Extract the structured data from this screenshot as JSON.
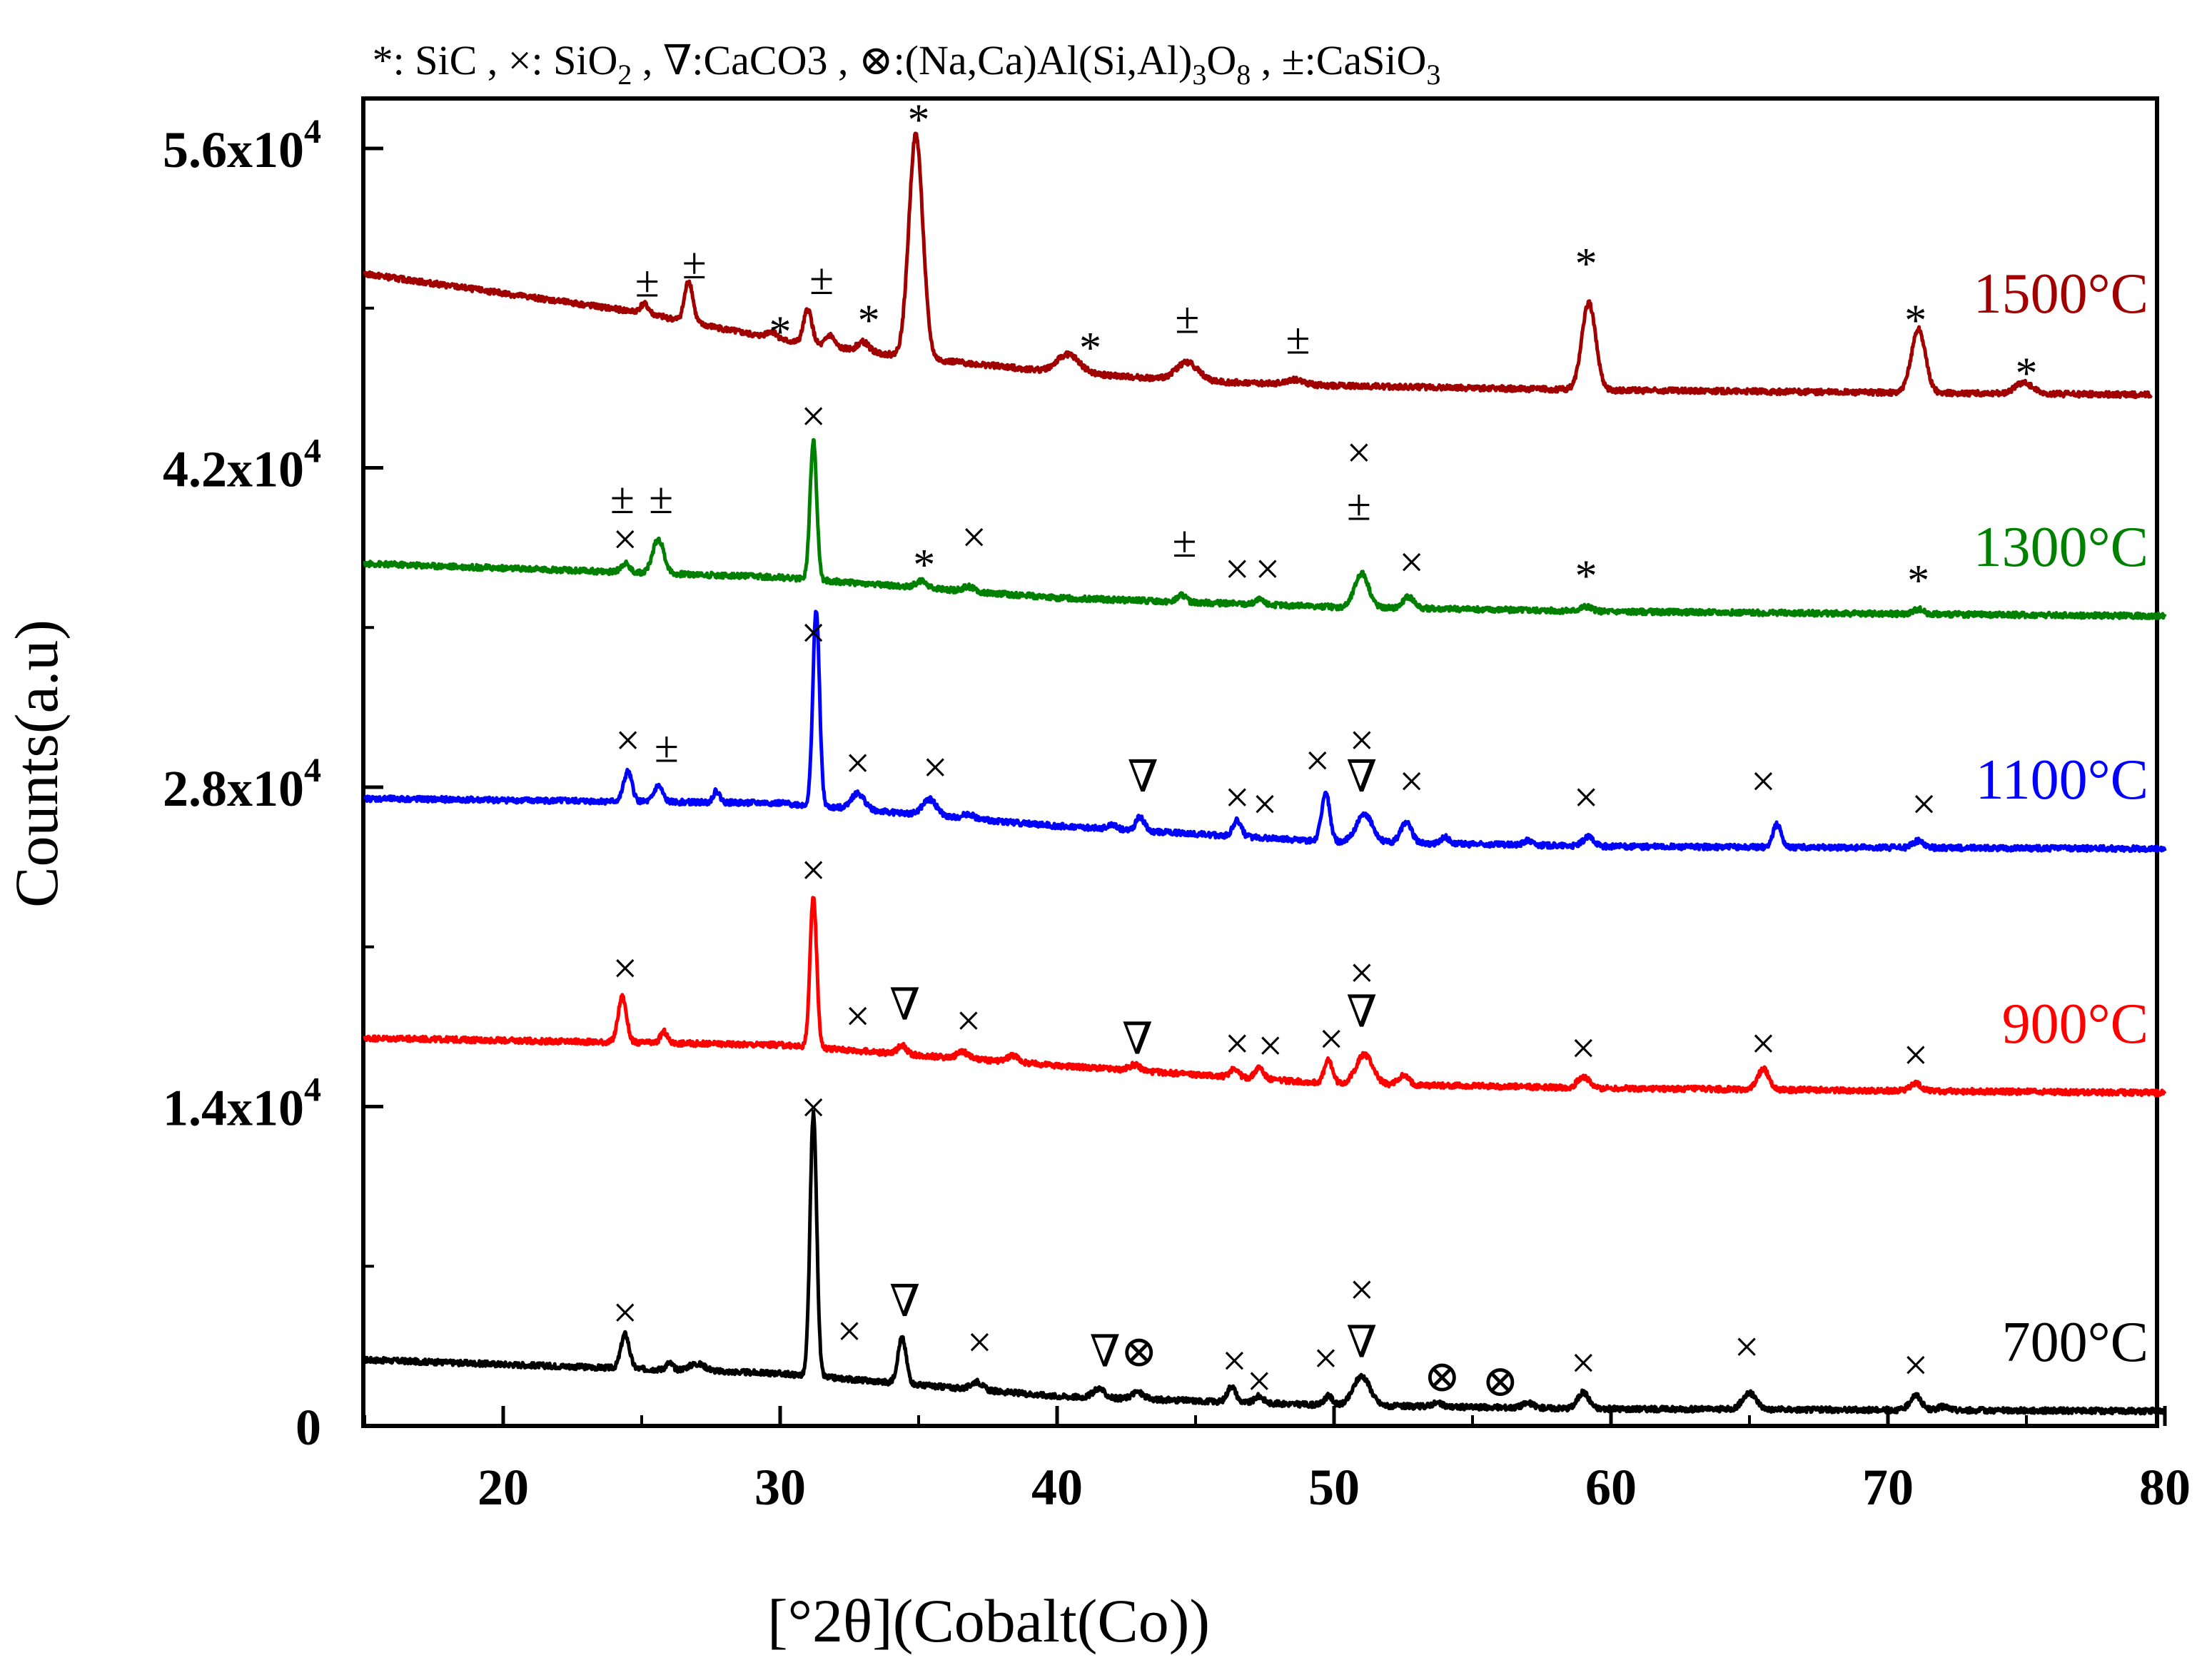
{
  "chart_data": {
    "type": "line",
    "title": "",
    "legend": "top",
    "legend_entries": [
      {
        "symbol": "*",
        "phase": "SiC"
      },
      {
        "symbol": "×",
        "phase": "SiO₂"
      },
      {
        "symbol": "∇",
        "phase": "CaCO3"
      },
      {
        "symbol": "⊗",
        "phase": "(Na,Ca)Al(Si,Al)₃O₈"
      },
      {
        "symbol": "±",
        "phase": "CaSiO₃"
      }
    ],
    "legend_parts": [
      {
        "t": "*: SiC ,  ",
        "s": "n"
      },
      {
        "t": "×: SiO",
        "s": "n"
      },
      {
        "t": "2",
        "s": "sub"
      },
      {
        "t": " , ∇:CaCO3 , ⊗:(Na,Ca)Al(Si,Al)",
        "s": "n"
      },
      {
        "t": "3",
        "s": "sub"
      },
      {
        "t": "O",
        "s": "n"
      },
      {
        "t": "8",
        "s": "sub"
      },
      {
        "t": "  , ±:CaSiO",
        "s": "n"
      },
      {
        "t": "3",
        "s": "sub"
      }
    ],
    "xlabel": "[°2θ](Cobalt(Co))",
    "ylabel": "Counts(a.u)",
    "xlim": [
      15,
      80
    ],
    "ylim": [
      0,
      56000
    ],
    "x_ticks": [
      20,
      30,
      40,
      50,
      60,
      70,
      80
    ],
    "y_ticks": [
      {
        "value": 0,
        "mant": "0",
        "exp": ""
      },
      {
        "value": 14000,
        "mant": "1.4x10",
        "exp": "4"
      },
      {
        "value": 28000,
        "mant": "2.8x10",
        "exp": "4"
      },
      {
        "value": 42000,
        "mant": "4.2x10",
        "exp": "4"
      },
      {
        "value": 56000,
        "mant": "5.6x10",
        "exp": "4"
      }
    ],
    "series": [
      {
        "name": "700°C",
        "color": "#000000",
        "baseline": [
          [
            15,
            2900
          ],
          [
            30,
            2300
          ],
          [
            40,
            1300
          ],
          [
            50,
            900
          ],
          [
            60,
            750
          ],
          [
            80,
            650
          ]
        ],
        "peaks": [
          [
            24.4,
            1500,
            0.15
          ],
          [
            26,
            300,
            0.12
          ],
          [
            27,
            300,
            0.3
          ],
          [
            31.2,
            11500,
            0.12
          ],
          [
            34.4,
            2000,
            0.15
          ],
          [
            37.1,
            350,
            0.2
          ],
          [
            41.5,
            400,
            0.2
          ],
          [
            42.9,
            300,
            0.2
          ],
          [
            46.3,
            700,
            0.15
          ],
          [
            47.3,
            300,
            0.15
          ],
          [
            49.8,
            400,
            0.15
          ],
          [
            51,
            1300,
            0.3
          ],
          [
            53.7,
            150,
            0.2
          ],
          [
            57,
            200,
            0.2
          ],
          [
            59,
            700,
            0.2
          ],
          [
            65,
            700,
            0.25
          ],
          [
            71,
            650,
            0.2
          ],
          [
            72,
            150,
            0.2
          ]
        ],
        "markers": [
          [
            "×",
            24.4,
            5000
          ],
          [
            "×",
            31.2,
            14000
          ],
          [
            "×",
            32.5,
            4200
          ],
          [
            "∇",
            34.5,
            5500
          ],
          [
            "×",
            37.2,
            3700
          ],
          [
            "∇⊗",
            42.4,
            3300
          ],
          [
            "×",
            46.4,
            2900
          ],
          [
            "×",
            47.3,
            2000
          ],
          [
            "×",
            49.7,
            3000
          ],
          [
            "×",
            51,
            6000
          ],
          [
            "∇",
            51,
            3700
          ],
          [
            "⊗",
            53.9,
            2200
          ],
          [
            "⊗",
            56,
            2000
          ],
          [
            "×",
            59,
            2800
          ],
          [
            "×",
            64.9,
            3500
          ],
          [
            "×",
            71,
            2700
          ]
        ]
      },
      {
        "name": "900°C",
        "color": "#ff0000",
        "baseline": [
          [
            15,
            17000
          ],
          [
            30,
            16700
          ],
          [
            40,
            15800
          ],
          [
            50,
            15000
          ],
          [
            60,
            14800
          ],
          [
            80,
            14600
          ]
        ],
        "peaks": [
          [
            24.3,
            2000,
            0.15
          ],
          [
            25.8,
            500,
            0.12
          ],
          [
            31.2,
            6600,
            0.12
          ],
          [
            34.4,
            400,
            0.15
          ],
          [
            36.6,
            300,
            0.2
          ],
          [
            38.4,
            300,
            0.2
          ],
          [
            42.8,
            250,
            0.2
          ],
          [
            46.4,
            400,
            0.15
          ],
          [
            47.3,
            500,
            0.15
          ],
          [
            49.8,
            1000,
            0.15
          ],
          [
            51.1,
            1300,
            0.3
          ],
          [
            52.5,
            400,
            0.2
          ],
          [
            59,
            500,
            0.2
          ],
          [
            65.5,
            900,
            0.2
          ],
          [
            71,
            300,
            0.2
          ]
        ],
        "markers": [
          [
            "×",
            24.4,
            20100
          ],
          [
            "×",
            31.2,
            24400
          ],
          [
            "×",
            32.8,
            18000
          ],
          [
            "∇",
            34.5,
            18500
          ],
          [
            "×",
            36.8,
            17800
          ],
          [
            "∇",
            42.9,
            17000
          ],
          [
            "×",
            46.5,
            16800
          ],
          [
            "×",
            47.7,
            16700
          ],
          [
            "×",
            49.9,
            17000
          ],
          [
            "×",
            51,
            19900
          ],
          [
            "∇",
            51,
            18200
          ],
          [
            "×",
            59,
            16600
          ],
          [
            "×",
            65.5,
            16800
          ],
          [
            "×",
            71,
            16300
          ]
        ]
      },
      {
        "name": "1100°C",
        "color": "#0000ff",
        "baseline": [
          [
            15,
            27500
          ],
          [
            30,
            27300
          ],
          [
            40,
            26300
          ],
          [
            50,
            25600
          ],
          [
            60,
            25400
          ],
          [
            80,
            25300
          ]
        ],
        "peaks": [
          [
            24.5,
            1300,
            0.15
          ],
          [
            25.6,
            700,
            0.15
          ],
          [
            27.7,
            500,
            0.12
          ],
          [
            31.3,
            8600,
            0.12
          ],
          [
            32.8,
            700,
            0.25
          ],
          [
            35.4,
            700,
            0.25
          ],
          [
            36.8,
            200,
            0.2
          ],
          [
            42,
            200,
            0.15
          ],
          [
            43,
            600,
            0.15
          ],
          [
            46.5,
            700,
            0.15
          ],
          [
            49.7,
            2100,
            0.15
          ],
          [
            51.1,
            1200,
            0.3
          ],
          [
            52.6,
            900,
            0.2
          ],
          [
            54,
            300,
            0.15
          ],
          [
            57,
            200,
            0.15
          ],
          [
            59.2,
            400,
            0.2
          ],
          [
            66,
            1000,
            0.15
          ],
          [
            71.1,
            300,
            0.2
          ]
        ],
        "markers": [
          [
            "×",
            24.5,
            30100
          ],
          [
            "±",
            25.9,
            29800
          ],
          [
            "×",
            31.2,
            34800
          ],
          [
            "×",
            32.8,
            29100
          ],
          [
            "×",
            35.6,
            28900
          ],
          [
            "∇",
            43.1,
            28500
          ],
          [
            "×",
            46.5,
            27600
          ],
          [
            "×",
            47.5,
            27300
          ],
          [
            "×",
            49.4,
            29200
          ],
          [
            "×",
            51,
            30100
          ],
          [
            "∇",
            51,
            28500
          ],
          [
            "×",
            52.8,
            28300
          ],
          [
            "×",
            59.1,
            27600
          ],
          [
            "×",
            65.5,
            28300
          ],
          [
            "×",
            71.3,
            27300
          ]
        ]
      },
      {
        "name": "1300°C",
        "color": "#008000",
        "baseline": [
          [
            15,
            37800
          ],
          [
            30,
            37200
          ],
          [
            40,
            36300
          ],
          [
            50,
            35900
          ],
          [
            60,
            35700
          ],
          [
            80,
            35500
          ]
        ],
        "peaks": [
          [
            24.4,
            400,
            0.15
          ],
          [
            25.6,
            1500,
            0.2
          ],
          [
            31.2,
            6100,
            0.12
          ],
          [
            35.1,
            300,
            0.2
          ],
          [
            36.8,
            200,
            0.2
          ],
          [
            44.5,
            300,
            0.15
          ],
          [
            47.3,
            200,
            0.15
          ],
          [
            51,
            1500,
            0.25
          ],
          [
            52.7,
            500,
            0.2
          ],
          [
            59.1,
            200,
            0.2
          ],
          [
            71.1,
            200,
            0.2
          ]
        ],
        "markers": [
          [
            "±",
            24.3,
            40700
          ],
          [
            "±",
            25.7,
            40700
          ],
          [
            "×",
            24.4,
            38900
          ],
          [
            "×",
            31.2,
            44300
          ],
          [
            "*",
            35.2,
            37800
          ],
          [
            "×",
            37,
            39000
          ],
          [
            "±",
            44.6,
            38800
          ],
          [
            "×",
            46.5,
            37600
          ],
          [
            "×",
            47.6,
            37600
          ],
          [
            "×",
            50.9,
            42700
          ],
          [
            "±",
            50.9,
            40400
          ],
          [
            "×",
            52.8,
            37900
          ],
          [
            "*",
            59.1,
            37300
          ],
          [
            "*",
            71.1,
            37100
          ]
        ]
      },
      {
        "name": "1500°C",
        "color": "#a00000",
        "baseline": [
          [
            15,
            50500
          ],
          [
            25,
            48800
          ],
          [
            30,
            47600
          ],
          [
            35,
            46800
          ],
          [
            40,
            46200
          ],
          [
            45,
            45800
          ],
          [
            50,
            45600
          ],
          [
            60,
            45400
          ],
          [
            70,
            45300
          ],
          [
            79.5,
            45200
          ]
        ],
        "peaks": [
          [
            25.1,
            400,
            0.15
          ],
          [
            26.7,
            1800,
            0.15
          ],
          [
            29.7,
            300,
            0.2
          ],
          [
            31,
            1500,
            0.15
          ],
          [
            31.8,
            500,
            0.15
          ],
          [
            33,
            400,
            0.2
          ],
          [
            34.9,
            9800,
            0.25
          ],
          [
            40.4,
            800,
            0.4
          ],
          [
            44.7,
            800,
            0.4
          ],
          [
            48.6,
            200,
            0.3
          ],
          [
            59.2,
            3800,
            0.25
          ],
          [
            71.1,
            2800,
            0.25
          ],
          [
            74.9,
            500,
            0.3
          ]
        ],
        "markers": [
          [
            "±",
            25.2,
            50200
          ],
          [
            "±",
            26.9,
            51000
          ],
          [
            "*",
            30,
            48000
          ],
          [
            "±",
            31.5,
            50300
          ],
          [
            "*",
            33.2,
            48500
          ],
          [
            "*",
            35,
            57300
          ],
          [
            "*",
            41.2,
            47300
          ],
          [
            "±",
            44.7,
            48600
          ],
          [
            "±",
            48.7,
            47700
          ],
          [
            "*",
            59.1,
            51000
          ],
          [
            "*",
            71,
            48500
          ],
          [
            "*",
            75,
            46200
          ]
        ]
      }
    ]
  }
}
